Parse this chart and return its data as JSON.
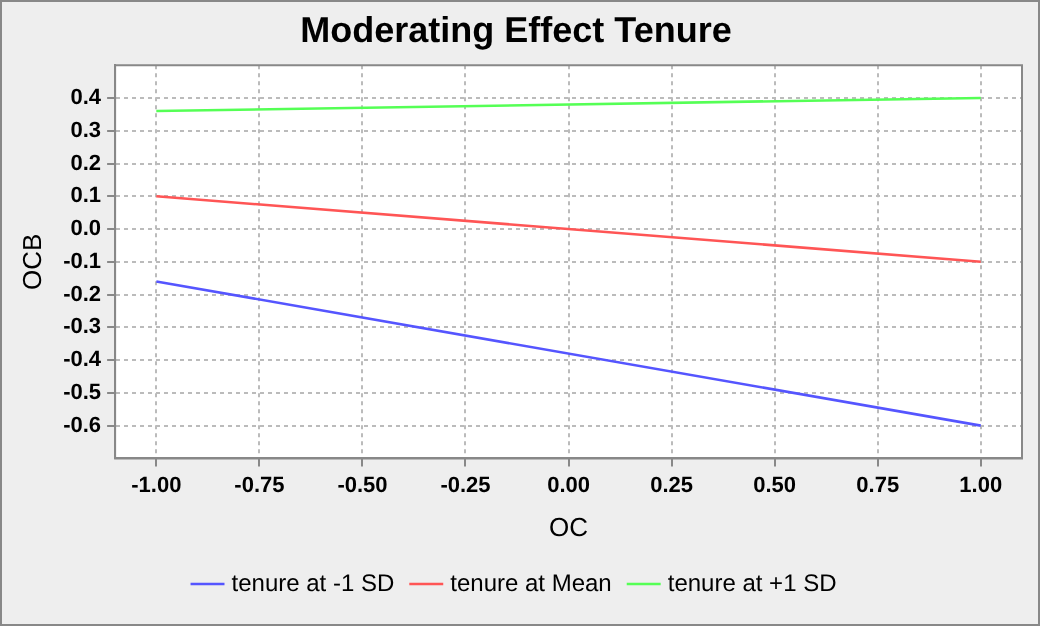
{
  "chart_data": {
    "type": "line",
    "title": "Moderating Effect Tenure",
    "xlabel": "OC",
    "ylabel": "OCB",
    "x": [
      -1,
      1
    ],
    "series": [
      {
        "name": "tenure at -1 SD",
        "color": "#5555ff",
        "values": [
          -0.16,
          -0.6
        ]
      },
      {
        "name": "tenure at Mean",
        "color": "#ff5555",
        "values": [
          0.1,
          -0.1
        ]
      },
      {
        "name": "tenure at +1 SD",
        "color": "#55ff55",
        "values": [
          0.36,
          0.4
        ]
      }
    ],
    "xlim": [
      -1.1,
      1.1
    ],
    "ylim": [
      -0.7,
      0.5
    ],
    "xticks": [
      {
        "value": -1,
        "label": "-1.00"
      },
      {
        "value": -0.75,
        "label": "-0.75"
      },
      {
        "value": -0.5,
        "label": "-0.50"
      },
      {
        "value": -0.25,
        "label": "-0.25"
      },
      {
        "value": 0,
        "label": "0.00"
      },
      {
        "value": 0.25,
        "label": "0.25"
      },
      {
        "value": 0.5,
        "label": "0.50"
      },
      {
        "value": 0.75,
        "label": "0.75"
      },
      {
        "value": 1,
        "label": "1.00"
      }
    ],
    "yticks": [
      {
        "value": -0.6,
        "label": "-0.6"
      },
      {
        "value": -0.5,
        "label": "-0.5"
      },
      {
        "value": -0.4,
        "label": "-0.4"
      },
      {
        "value": -0.3,
        "label": "-0.3"
      },
      {
        "value": -0.2,
        "label": "-0.2"
      },
      {
        "value": -0.1,
        "label": "-0.1"
      },
      {
        "value": 0,
        "label": "0.0"
      },
      0.1,
      0.2,
      0.3,
      0.4
    ],
    "grid": true,
    "legend": "bottom",
    "marker": "none",
    "line_style": "solid"
  }
}
